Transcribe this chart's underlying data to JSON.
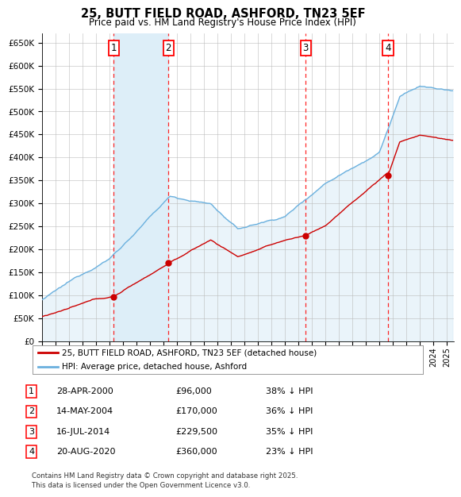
{
  "title": "25, BUTT FIELD ROAD, ASHFORD, TN23 5EF",
  "subtitle": "Price paid vs. HM Land Registry's House Price Index (HPI)",
  "ylabel_ticks": [
    "£0",
    "£50K",
    "£100K",
    "£150K",
    "£200K",
    "£250K",
    "£300K",
    "£350K",
    "£400K",
    "£450K",
    "£500K",
    "£550K",
    "£600K",
    "£650K"
  ],
  "ytick_values": [
    0,
    50000,
    100000,
    150000,
    200000,
    250000,
    300000,
    350000,
    400000,
    450000,
    500000,
    550000,
    600000,
    650000
  ],
  "ylim": [
    0,
    670000
  ],
  "xlim_start": 1995.0,
  "xlim_end": 2025.5,
  "hpi_color": "#6ab0de",
  "price_color": "#cc0000",
  "shade_color": "#ddeef8",
  "sale_points": [
    {
      "year": 2000.32,
      "price": 96000,
      "label": "1"
    },
    {
      "year": 2004.37,
      "price": 170000,
      "label": "2"
    },
    {
      "year": 2014.54,
      "price": 229500,
      "label": "3"
    },
    {
      "year": 2020.63,
      "price": 360000,
      "label": "4"
    }
  ],
  "shade_region": [
    2000.32,
    2004.37
  ],
  "legend_entries": [
    {
      "label": "25, BUTT FIELD ROAD, ASHFORD, TN23 5EF (detached house)",
      "color": "#cc0000"
    },
    {
      "label": "HPI: Average price, detached house, Ashford",
      "color": "#6ab0de"
    }
  ],
  "table_rows": [
    {
      "num": "1",
      "date": "28-APR-2000",
      "price": "£96,000",
      "pct": "38% ↓ HPI"
    },
    {
      "num": "2",
      "date": "14-MAY-2004",
      "price": "£170,000",
      "pct": "36% ↓ HPI"
    },
    {
      "num": "3",
      "date": "16-JUL-2014",
      "price": "£229,500",
      "pct": "35% ↓ HPI"
    },
    {
      "num": "4",
      "date": "20-AUG-2020",
      "price": "£360,000",
      "pct": "23% ↓ HPI"
    }
  ],
  "footnote": "Contains HM Land Registry data © Crown copyright and database right 2025.\nThis data is licensed under the Open Government Licence v3.0.",
  "background_color": "#ffffff",
  "grid_color": "#bbbbbb",
  "plot_bg_color": "#ffffff"
}
